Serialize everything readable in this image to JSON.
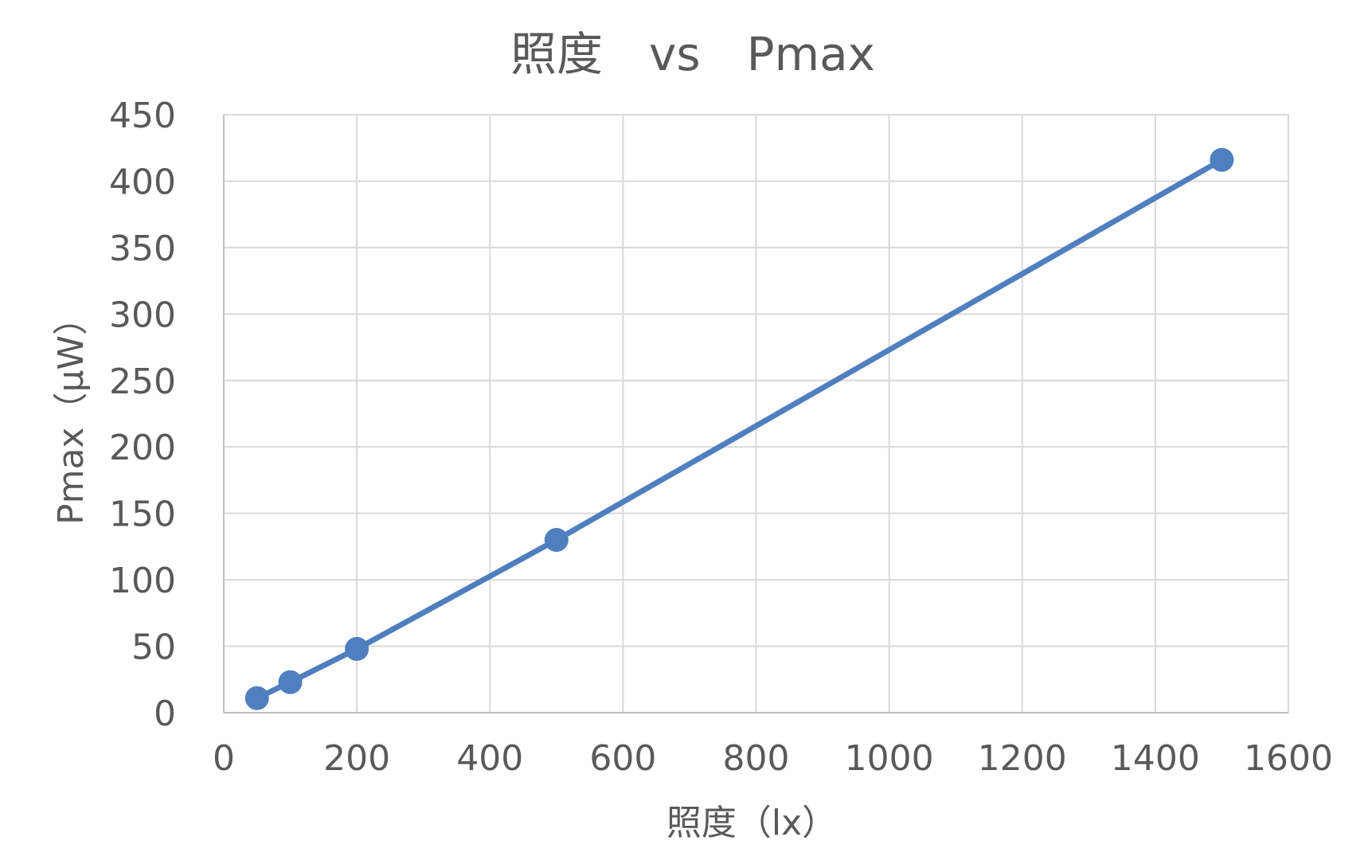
{
  "chart_data": {
    "type": "line",
    "title": "照度　vs　Pmax",
    "xlabel": "照度（lx）",
    "ylabel": "Pmax（μW）",
    "xlim": [
      0,
      1600
    ],
    "ylim": [
      0,
      450
    ],
    "xticks": [
      0,
      200,
      400,
      600,
      800,
      1000,
      1200,
      1400,
      1600
    ],
    "yticks": [
      0,
      50,
      100,
      150,
      200,
      250,
      300,
      350,
      400,
      450
    ],
    "grid": true,
    "legend": "none",
    "series": [
      {
        "color": "#4f7fbf",
        "marker": "circle",
        "points": [
          {
            "x": 50,
            "y": 11
          },
          {
            "x": 100,
            "y": 23
          },
          {
            "x": 200,
            "y": 48
          },
          {
            "x": 500,
            "y": 130
          },
          {
            "x": 1500,
            "y": 416
          }
        ]
      }
    ]
  },
  "colors": {
    "grid": "#d9d9d9",
    "axis": "#bfbfbf",
    "text": "#595959",
    "series": "#4f7fbf"
  }
}
